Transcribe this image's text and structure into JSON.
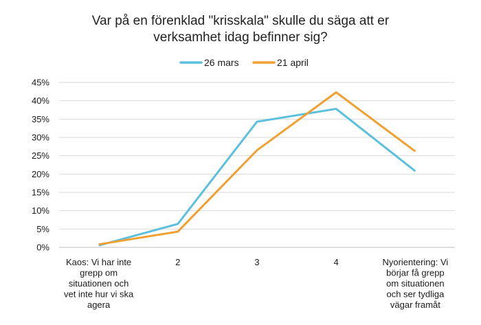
{
  "chart_data": {
    "type": "line",
    "title": "Var på en förenklad \"krisskala\" skulle du säga att er verksamhet idag befinner sig?",
    "title_lines": [
      "Var på en förenklad \"krisskala\" skulle du säga att er",
      "verksamhet idag befinner sig?"
    ],
    "categories": [
      "Kaos: Vi har inte grepp om situationen och vet inte hur vi ska agera",
      "2",
      "3",
      "4",
      "Nyorientering: Vi börjar få grepp om situationen och ser tydliga vägar framåt"
    ],
    "category_lines": [
      [
        "Kaos: Vi har inte",
        "grepp om",
        "situationen och",
        "vet inte hur vi ska",
        "agera"
      ],
      [
        "2"
      ],
      [
        "3"
      ],
      [
        "4"
      ],
      [
        "Nyorientering: Vi",
        "börjar få grepp",
        "om situationen",
        "och ser tydliga",
        "vägar framåt"
      ]
    ],
    "series": [
      {
        "name": "26 mars",
        "color": "#5BC0DE",
        "values": [
          0.5,
          6.4,
          34.3,
          37.8,
          20.8
        ]
      },
      {
        "name": "21 april",
        "color": "#F0A030",
        "values": [
          0.8,
          4.3,
          26.5,
          42.3,
          26.2
        ]
      }
    ],
    "ylim": [
      0,
      45
    ],
    "yticks": [
      0,
      5,
      10,
      15,
      20,
      25,
      30,
      35,
      40,
      45
    ],
    "ytick_labels": [
      "0%",
      "5%",
      "10%",
      "15%",
      "20%",
      "25%",
      "30%",
      "35%",
      "40%",
      "45%"
    ],
    "xlabel": "",
    "ylabel": "",
    "grid": true,
    "legend_position": "top"
  }
}
